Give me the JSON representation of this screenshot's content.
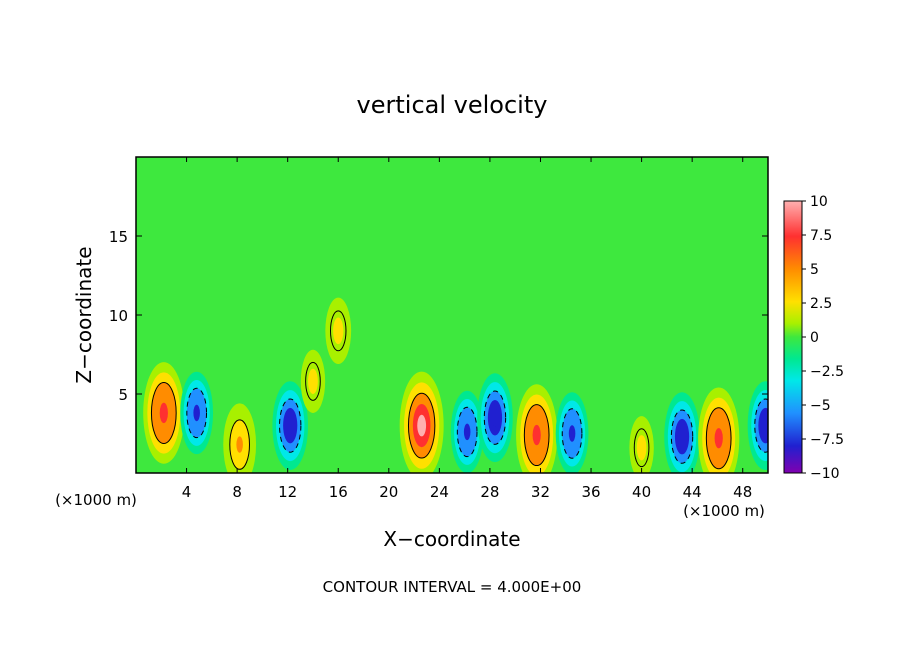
{
  "chart_data": {
    "type": "heatmap",
    "title": "vertical velocity",
    "xlabel": "X−coordinate",
    "ylabel": "Z−coordinate",
    "x_unit": "(×1000 m)",
    "y_unit": "(×1000 m)",
    "xlim": [
      0,
      50
    ],
    "ylim": [
      0,
      20
    ],
    "xticks": [
      4,
      8,
      12,
      16,
      20,
      24,
      28,
      32,
      36,
      40,
      44,
      48
    ],
    "yticks": [
      5,
      10,
      15
    ],
    "xtick_labels": [
      "4",
      "8",
      "12",
      "16",
      "20",
      "24",
      "28",
      "32",
      "36",
      "40",
      "44",
      "48"
    ],
    "ytick_labels": [
      "5",
      "10",
      "15"
    ],
    "colorbar": {
      "ticks": [
        10,
        7.5,
        5,
        2.5,
        0,
        -2.5,
        -5,
        -7.5,
        -10
      ],
      "labels": [
        "10",
        "7.5",
        "5",
        "2.5",
        "0",
        "−2.5",
        "−5",
        "−7.5",
        "−10"
      ],
      "range": [
        -10,
        10
      ]
    },
    "footer": "CONTOUR INTERVAL = 4.000E+00",
    "contour_interval": 4.0,
    "features": [
      {
        "x": 2.2,
        "z": 3.8,
        "w": 9
      },
      {
        "x": 4.8,
        "z": 3.8,
        "w": -6
      },
      {
        "x": 8.2,
        "z": 1.8,
        "w": 6
      },
      {
        "x": 12.2,
        "z": 3.0,
        "w": -7
      },
      {
        "x": 14.0,
        "z": 5.8,
        "w": 3
      },
      {
        "x": 16.0,
        "z": 9.0,
        "w": 3.5
      },
      {
        "x": 22.6,
        "z": 3.0,
        "w": 10
      },
      {
        "x": 26.2,
        "z": 2.6,
        "w": -6
      },
      {
        "x": 28.4,
        "z": 3.5,
        "w": -7
      },
      {
        "x": 31.7,
        "z": 2.4,
        "w": 9
      },
      {
        "x": 34.5,
        "z": 2.5,
        "w": -6
      },
      {
        "x": 40.0,
        "z": 1.6,
        "w": 3
      },
      {
        "x": 43.2,
        "z": 2.3,
        "w": -7
      },
      {
        "x": 46.1,
        "z": 2.2,
        "w": 9
      },
      {
        "x": 49.8,
        "z": 3.0,
        "w": -7
      }
    ]
  }
}
